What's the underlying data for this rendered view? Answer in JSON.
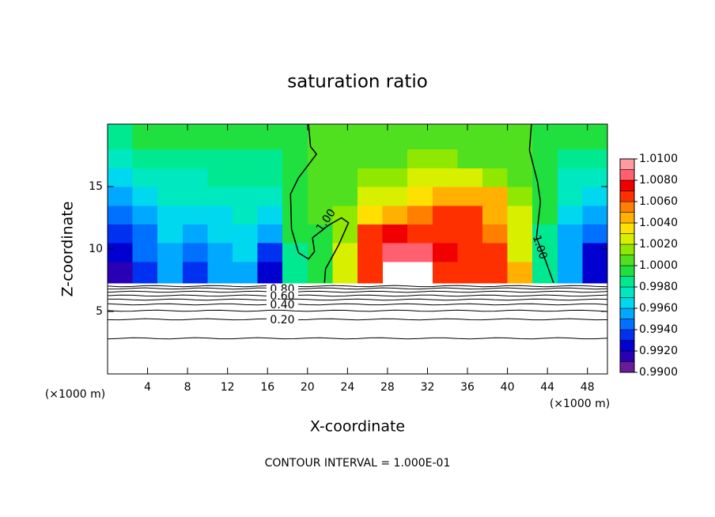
{
  "chart_data": {
    "type": "contour",
    "title": "saturation ratio",
    "xlabel": "X-coordinate",
    "ylabel": "Z-coordinate",
    "x_unit": "(×1000 m)",
    "footer": "CONTOUR INTERVAL = 1.000E-01",
    "xlim": [
      0,
      50
    ],
    "ylim": [
      0,
      20
    ],
    "xticks": [
      4,
      8,
      12,
      16,
      20,
      24,
      28,
      32,
      36,
      40,
      44,
      48
    ],
    "yticks": [
      5,
      10,
      15
    ],
    "xbins": [
      0,
      2.5,
      5,
      7.5,
      10,
      12.5,
      15,
      17.5,
      20,
      22.5,
      25,
      27.5,
      30,
      32.5,
      35,
      37.5,
      40,
      42.5,
      45,
      47.5,
      50
    ],
    "zbins": [
      7.3,
      9,
      10.5,
      12,
      13.5,
      15,
      16.5,
      18,
      20
    ],
    "values": [
      [
        0.9915,
        0.9935,
        0.995,
        0.993,
        0.995,
        0.9955,
        0.992,
        0.9985,
        0.9995,
        1.003,
        1.0065,
        null,
        null,
        1.007,
        1.0068,
        1.006,
        1.004,
        0.9985,
        0.995,
        0.992
      ],
      [
        0.9925,
        0.994,
        0.9955,
        0.9945,
        0.9958,
        0.996,
        0.9935,
        0.9988,
        0.9998,
        1.002,
        1.006,
        1.0085,
        1.0085,
        1.0075,
        1.007,
        1.0062,
        1.003,
        0.9985,
        0.9952,
        0.9925
      ],
      [
        0.9935,
        0.9948,
        0.996,
        0.9958,
        0.9962,
        0.9965,
        0.9955,
        0.999,
        0.9998,
        1.0015,
        1.006,
        1.0072,
        1.0068,
        1.0065,
        1.0068,
        1.0058,
        1.0025,
        0.9988,
        0.9958,
        0.994
      ],
      [
        0.9945,
        0.9955,
        0.9965,
        0.9966,
        0.9968,
        0.997,
        0.9968,
        0.9992,
        1.0,
        1.0012,
        1.0035,
        1.0048,
        1.0055,
        1.006,
        1.0066,
        1.005,
        1.002,
        0.999,
        0.9965,
        0.9952
      ],
      [
        0.9955,
        0.9962,
        0.997,
        0.9972,
        0.9974,
        0.9975,
        0.9975,
        0.9994,
        1.0002,
        1.0008,
        1.002,
        1.0028,
        1.0035,
        1.0045,
        1.005,
        1.004,
        1.0015,
        0.9992,
        0.9972,
        0.9962
      ],
      [
        0.9965,
        0.997,
        0.9976,
        0.9978,
        0.998,
        0.998,
        0.9982,
        0.9996,
        1.0003,
        1.0006,
        1.0012,
        1.0016,
        1.002,
        1.0022,
        1.0022,
        1.0018,
        1.0008,
        0.9994,
        0.9978,
        0.997
      ],
      [
        0.9978,
        0.998,
        0.9984,
        0.9985,
        0.9986,
        0.9987,
        0.9988,
        0.9997,
        1.0003,
        1.0005,
        1.0008,
        1.001,
        1.0012,
        1.0012,
        1.001,
        1.0008,
        1.0004,
        0.9996,
        0.9986,
        0.998
      ],
      [
        0.9988,
        0.999,
        0.9992,
        0.9992,
        0.9993,
        0.9994,
        0.9995,
        0.9998,
        1.0002,
        1.0004,
        1.0005,
        1.0006,
        1.0006,
        1.0006,
        1.0005,
        1.0004,
        1.0002,
        0.9998,
        0.9992,
        0.999
      ]
    ],
    "clim": [
      0.99,
      1.01
    ],
    "colors": [
      "#6a1b9a",
      "#2a00b4",
      "#0000d0",
      "#0030f0",
      "#0070ff",
      "#00a8ff",
      "#00d8f0",
      "#00e8c0",
      "#00e890",
      "#20e040",
      "#50e020",
      "#90e800",
      "#d8f000",
      "#ffe000",
      "#ffb000",
      "#ff8000",
      "#ff3000",
      "#f00000",
      "#ff6070",
      "#ff9aa0"
    ],
    "cticks": [
      {
        "value": 0.99,
        "label": "0.9900"
      },
      {
        "value": 0.992,
        "label": "0.9920"
      },
      {
        "value": 0.994,
        "label": "0.9940"
      },
      {
        "value": 0.996,
        "label": "0.9960"
      },
      {
        "value": 0.998,
        "label": "0.9980"
      },
      {
        "value": 1.0,
        "label": "1.0000"
      },
      {
        "value": 1.002,
        "label": "1.0020"
      },
      {
        "value": 1.004,
        "label": "1.0040"
      },
      {
        "value": 1.006,
        "label": "1.0060"
      },
      {
        "value": 1.008,
        "label": "1.0080"
      },
      {
        "value": 1.01,
        "label": "1.0100"
      }
    ],
    "curves": [
      {
        "label": "1.00",
        "x": [
          20.1,
          20.3,
          20.9,
          19.1,
          18.3,
          18.4,
          19.1,
          20.1,
          20.7,
          20.5,
          22.1,
          23.4,
          24.1,
          23.1,
          21.8,
          21.7
        ],
        "z": [
          20,
          18.2,
          17.6,
          15.7,
          14.4,
          11.6,
          9.7,
          9.2,
          9.8,
          10.9,
          11.9,
          12.5,
          12.1,
          10.3,
          8.4,
          7.3
        ]
      },
      {
        "label": "1.00",
        "x": [
          42.4,
          42.2,
          43.0,
          43.3,
          42.9,
          43.8,
          44.6
        ],
        "z": [
          20,
          17.9,
          15.4,
          13.8,
          10.9,
          9.1,
          7.3
        ]
      }
    ],
    "lower_contours": [
      {
        "level": 0.9,
        "z": 7.03
      },
      {
        "level": 0.8,
        "z": 6.84,
        "label": "0.80"
      },
      {
        "level": 0.7,
        "z": 6.58
      },
      {
        "level": 0.6,
        "z": 6.27,
        "label": "0.60"
      },
      {
        "level": 0.5,
        "z": 5.95
      },
      {
        "level": 0.4,
        "z": 5.57,
        "label": "0.40"
      },
      {
        "level": 0.3,
        "z": 5.06
      },
      {
        "level": 0.2,
        "z": 4.37,
        "label": "0.20"
      },
      {
        "level": 0.1,
        "z": 2.85
      }
    ]
  }
}
